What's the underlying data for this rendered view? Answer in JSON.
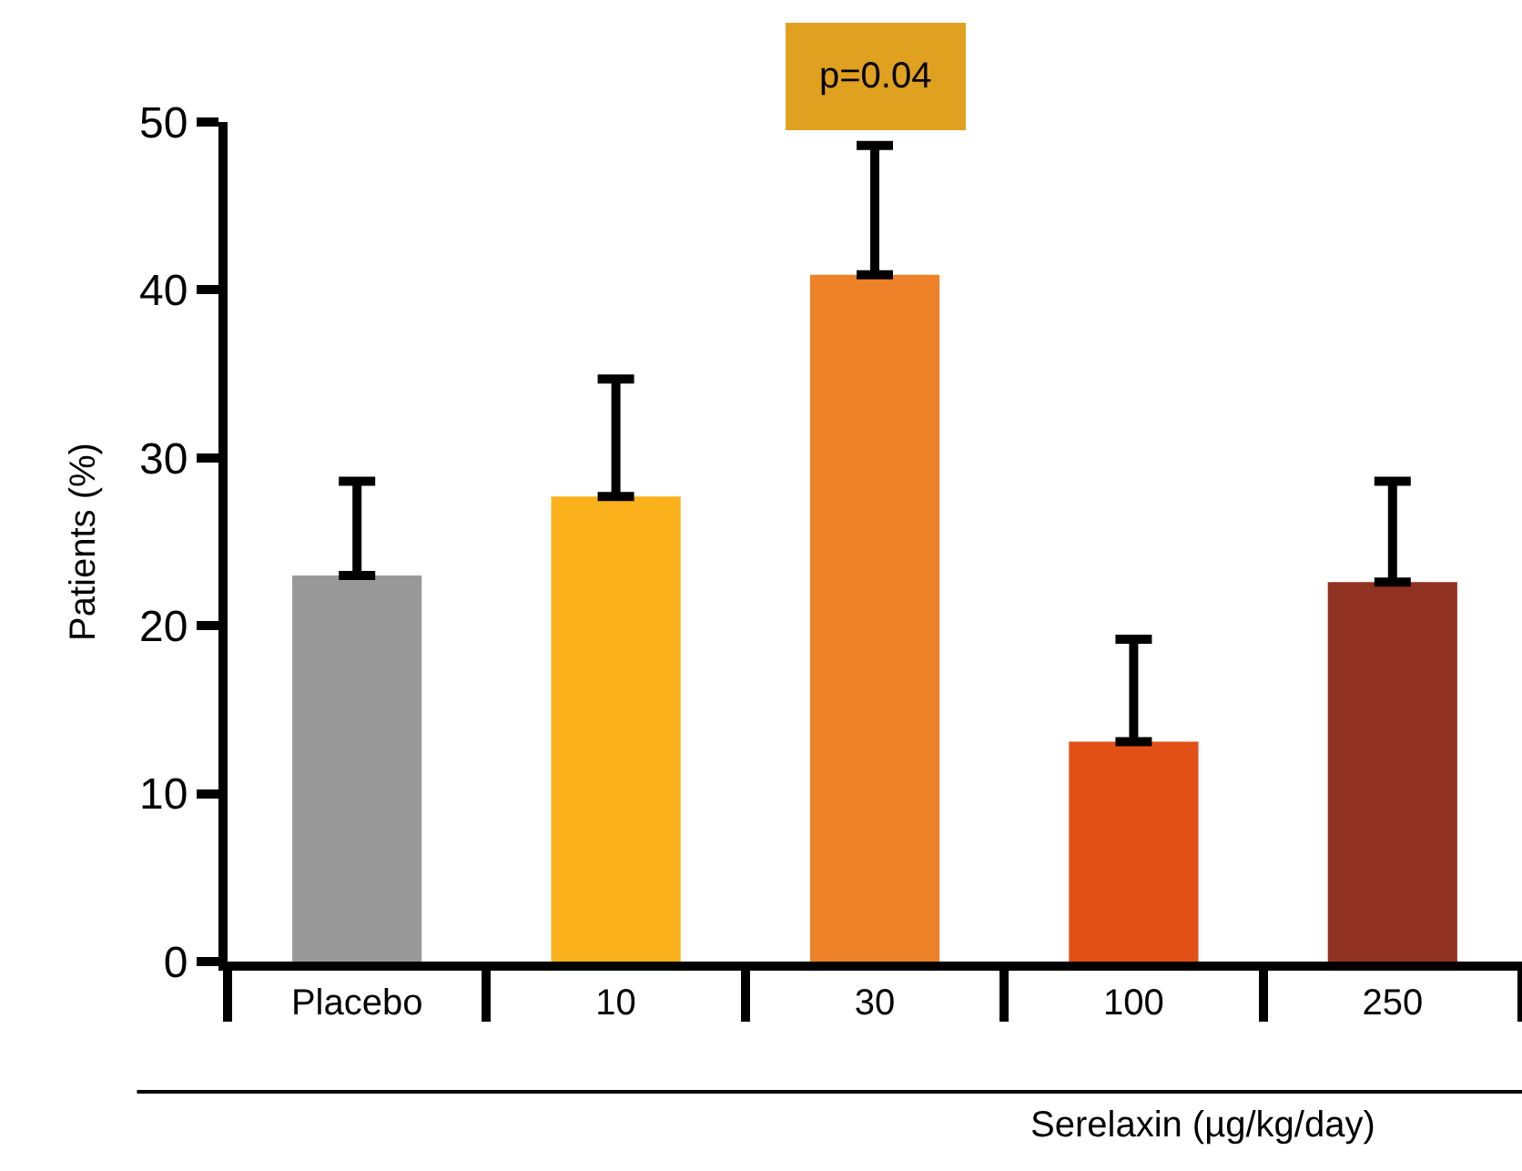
{
  "chart_data": {
    "type": "bar",
    "xlabel": "Serelaxin (µg/kg/day)",
    "ylabel": "Patients (%)",
    "categories": [
      "Placebo",
      "10",
      "30",
      "100",
      "250"
    ],
    "values": [
      23,
      27.7,
      40.9,
      13.1,
      22.6
    ],
    "colors": [
      "#999999",
      "#fbb11b",
      "#ee8228",
      "#e35016",
      "#923222"
    ],
    "errors": [
      [
        23,
        28.6
      ],
      [
        27.7,
        34.7
      ],
      [
        40.9,
        48.6
      ],
      [
        13.1,
        19.2
      ],
      [
        22.6,
        28.6
      ]
    ],
    "ylim": [
      0,
      50
    ],
    "yticks": [
      0,
      10,
      20,
      30,
      40,
      50
    ],
    "annotations": [
      {
        "text": "p=0.04",
        "x": "30",
        "y": 48.6
      }
    ]
  }
}
